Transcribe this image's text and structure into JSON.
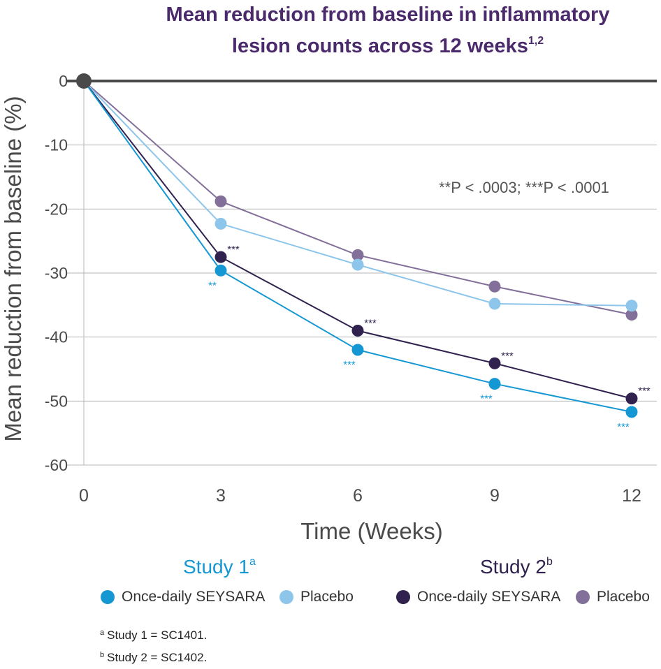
{
  "chart_data": {
    "type": "line",
    "title_line1": "Mean reduction from baseline in inflammatory",
    "title_line2": "lesion counts across 12 weeks",
    "title_sup": "1,2",
    "xlabel": "Time (Weeks)",
    "ylabel": "Mean reduction from baseline (%)",
    "x": [
      0,
      3,
      6,
      9,
      12
    ],
    "xticks": [
      "0",
      "3",
      "6",
      "9",
      "12"
    ],
    "yticks": [
      "0",
      "-10",
      "-20",
      "-30",
      "-40",
      "-50",
      "-60"
    ],
    "ylim": [
      -60,
      0
    ],
    "xlim": [
      0,
      12
    ],
    "annotation": "**P < .0003;  ***P < .0001",
    "series": [
      {
        "name": "Study 2 Placebo",
        "color": "#83709a",
        "values": [
          0,
          -18.8,
          -27.2,
          -32.1,
          -36.5
        ],
        "sig": [
          "",
          "",
          "",
          "",
          ""
        ]
      },
      {
        "name": "Study 1 Placebo",
        "color": "#8ec5ea",
        "values": [
          0,
          -22.3,
          -28.7,
          -34.8,
          -35.1
        ],
        "sig": [
          "",
          "",
          "",
          "",
          ""
        ]
      },
      {
        "name": "Study 2 Once-daily SEYSARA",
        "color": "#30214f",
        "values": [
          0,
          -27.5,
          -39.0,
          -44.1,
          -49.6
        ],
        "sig": [
          "",
          "***",
          "***",
          "***",
          "***"
        ]
      },
      {
        "name": "Study 1 Once-daily SEYSARA",
        "color": "#1597d3",
        "values": [
          0,
          -29.6,
          -42.0,
          -47.3,
          -51.7
        ],
        "sig": [
          "",
          "**",
          "***",
          "***",
          "***"
        ]
      }
    ]
  },
  "legend": {
    "study1_title": "Study 1",
    "study1_sup": "a",
    "study2_title": "Study 2",
    "study2_sup": "b",
    "study1_drug": "Once-daily SEYSARA",
    "study1_placebo": "Placebo",
    "study2_drug": "Once-daily SEYSARA",
    "study2_placebo": "Placebo",
    "study1_color": "#1597d3",
    "study1_placebo_color": "#8ec5ea",
    "study2_color": "#30214f",
    "study2_placebo_color": "#83709a"
  },
  "footnotes": {
    "a_mark": "a",
    "a_text": "Study 1 = SC1401.",
    "b_mark": "b",
    "b_text": "Study 2 = SC1402."
  }
}
